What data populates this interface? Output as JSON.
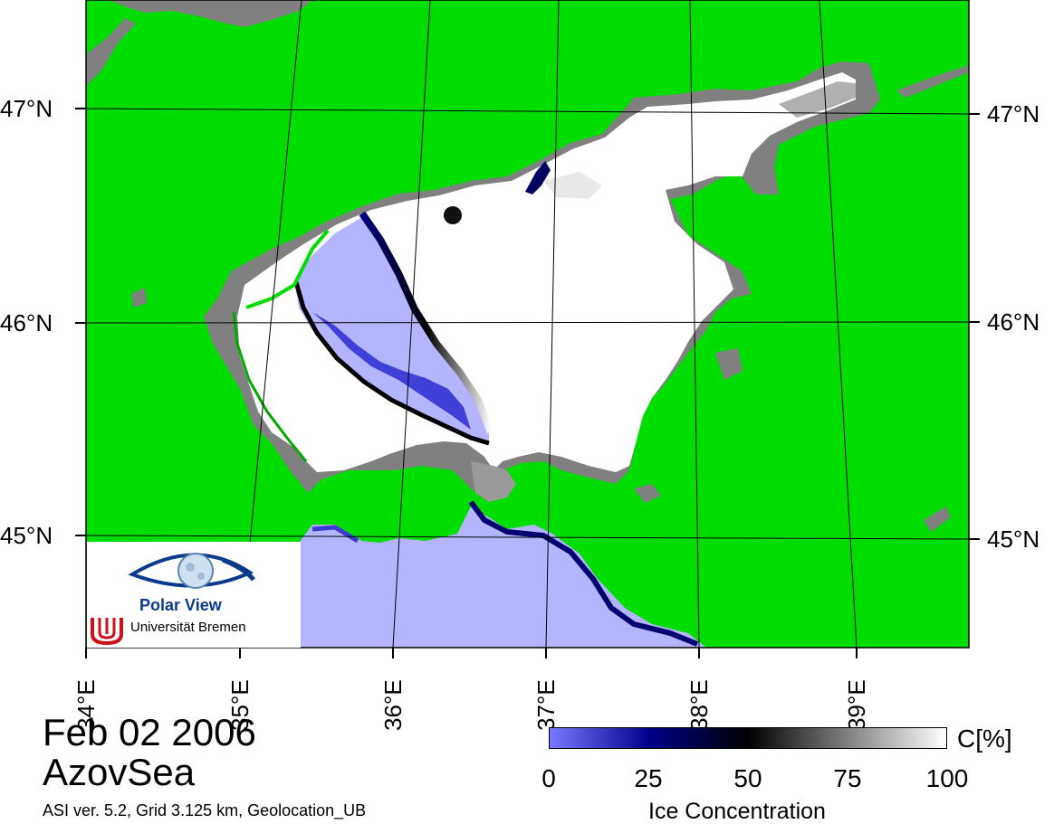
{
  "map": {
    "lat_labels": [
      "47°N",
      "46°N",
      "45°N"
    ],
    "lon_labels": [
      "34°E",
      "35°E",
      "36°E",
      "37°E",
      "38°E",
      "39°E"
    ],
    "colors": {
      "land": "#00dd00",
      "land_mask": "#808080",
      "open_water": "#b4b4ff",
      "full_ice": "#ffffff"
    }
  },
  "logo": {
    "title": "Polar View",
    "institution": "Universität Bremen",
    "icon": "eye-globe-icon"
  },
  "caption": {
    "date": "Feb 02 2006",
    "region": "AzovSea",
    "info": "ASI ver. 5.2,  Grid 3.125 km, Geolocation_UB"
  },
  "colorbar": {
    "unit": "C[%]",
    "ticks": [
      "0",
      "25",
      "50",
      "75",
      "100"
    ],
    "title": "Ice Concentration",
    "range": [
      0,
      100
    ],
    "gradient": [
      "#7878ff",
      "#00008c",
      "#000000",
      "#808080",
      "#ffffff"
    ]
  }
}
